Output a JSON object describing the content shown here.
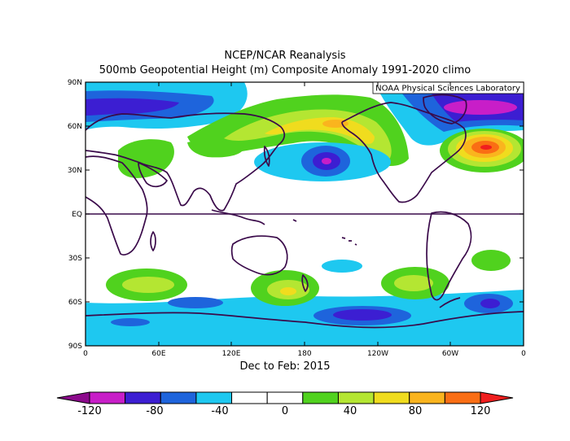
{
  "title": "NCEP/NCAR Reanalysis",
  "subtitle": "500mb Geopotential Height (m) Composite Anomaly 1991-2020 climo",
  "credit": "NOAA Physical Sciences Laboratory",
  "time_label": "Dec to Feb: 2015",
  "lat_ticks": [
    "90N",
    "60N",
    "30N",
    "EQ",
    "30S",
    "60S",
    "90S"
  ],
  "lon_ticks": [
    "0",
    "60E",
    "120E",
    "180",
    "120W",
    "60W",
    "0"
  ],
  "colorbar": {
    "labels": [
      "-120",
      "-80",
      "-40",
      "0",
      "40",
      "80",
      "120"
    ],
    "colors": [
      "#8c0a8c",
      "#c81ec8",
      "#3c1ed2",
      "#1e64dc",
      "#1ec8f0",
      "#ffffff",
      "#ffffff",
      "#50d21e",
      "#b4e632",
      "#f0dc1e",
      "#fab41e",
      "#fa6e14",
      "#f01e1e"
    ]
  },
  "colors": {
    "coastline": "#3a0a4a",
    "border": "#3a0a4a"
  }
}
